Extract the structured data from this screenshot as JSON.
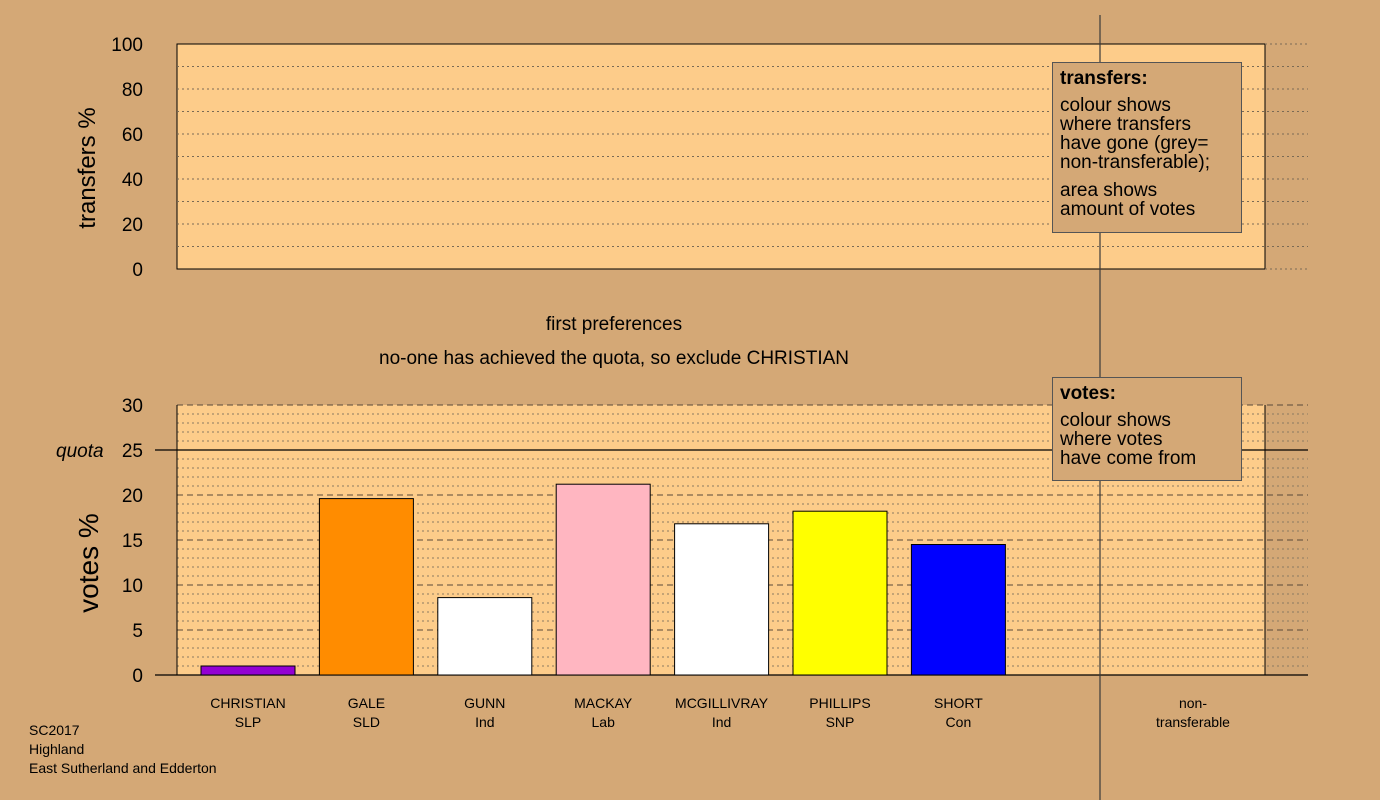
{
  "top_axis": {
    "label": "transfers %",
    "ticks": [
      0,
      20,
      40,
      60,
      80,
      100
    ]
  },
  "bottom_axis": {
    "label": "votes %",
    "ticks": [
      0,
      5,
      10,
      15,
      20,
      25,
      30
    ],
    "quota_label": "quota"
  },
  "headings": {
    "stage": "first preferences",
    "message": "no-one has achieved the quota, so exclude CHRISTIAN"
  },
  "legend_transfers": {
    "title": "transfers:",
    "lines1": [
      "colour shows",
      "where transfers",
      "have gone (grey=",
      "non-transferable);"
    ],
    "lines2": [
      "area shows",
      "amount of votes"
    ]
  },
  "legend_votes": {
    "title": "votes:",
    "lines": [
      "colour shows",
      "where votes",
      "have come from"
    ]
  },
  "footer": {
    "lines": [
      "SC2017",
      "Highland",
      "East Sutherland and Edderton"
    ]
  },
  "chart_data": {
    "type": "bar",
    "categories": [
      "CHRISTIAN",
      "GALE",
      "GUNN",
      "MACKAY",
      "MCGILLIVRAY",
      "PHILLIPS",
      "SHORT"
    ],
    "parties": [
      "SLP",
      "SLD",
      "Ind",
      "Lab",
      "Ind",
      "SNP",
      "Con"
    ],
    "values": [
      1.0,
      19.6,
      8.6,
      21.2,
      16.8,
      18.2,
      14.5
    ],
    "colors": [
      "#9400d3",
      "#ff8c00",
      "#ffffff",
      "#ffb6c1",
      "#ffffff",
      "#ffff00",
      "#0000ff"
    ],
    "quota": 25,
    "ylim": [
      0,
      30
    ],
    "ylabel": "votes %",
    "extra_category": [
      "non-",
      "transferable"
    ],
    "transfers_ylabel": "transfers %",
    "transfers_ylim": [
      0,
      100
    ],
    "grid": true
  }
}
